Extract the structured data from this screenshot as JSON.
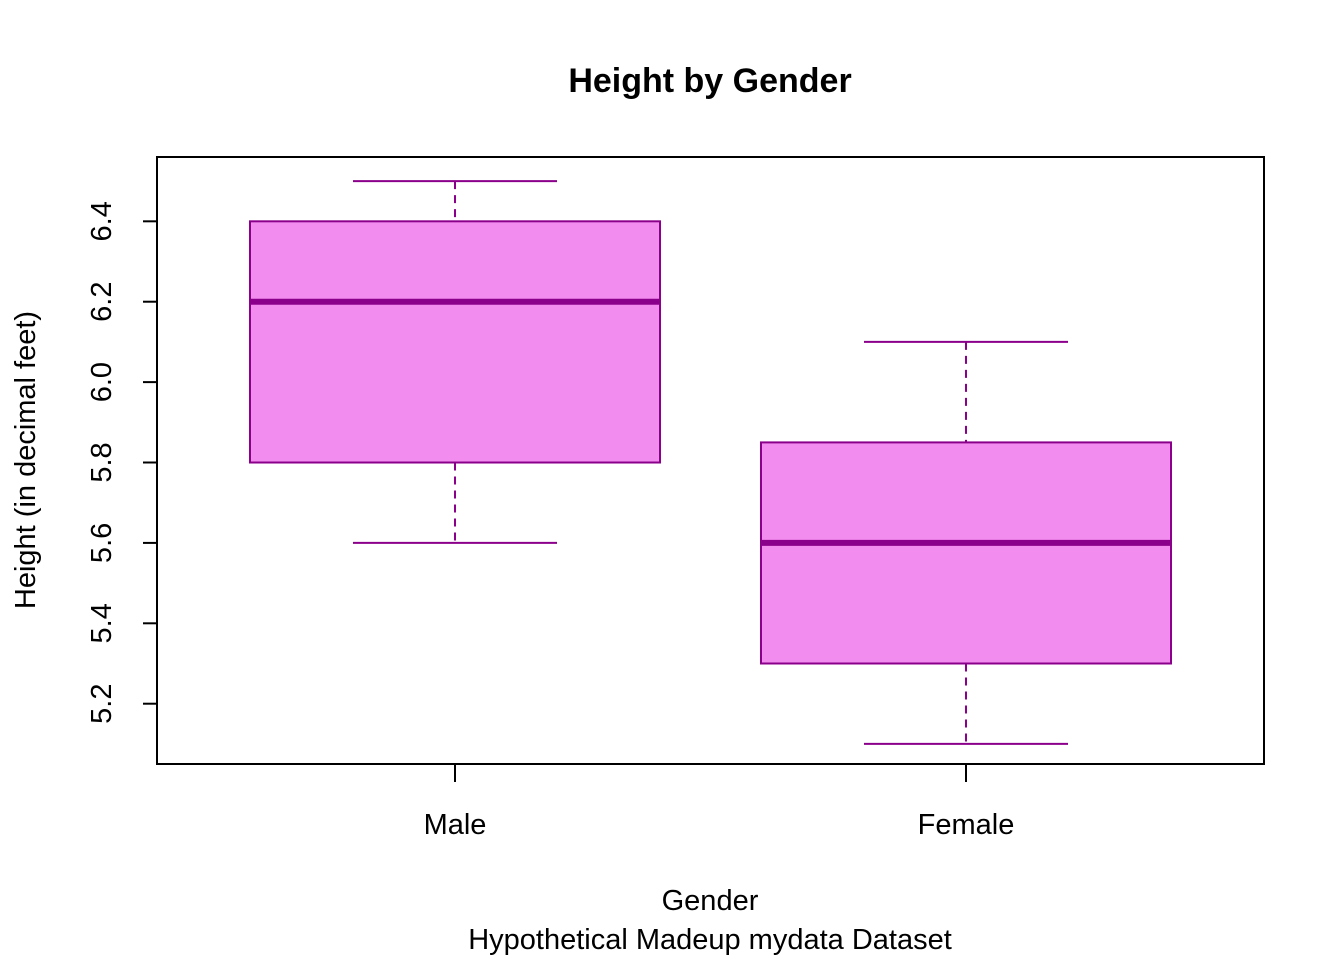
{
  "chart_data": {
    "type": "boxplot",
    "title": "Height by Gender",
    "xlabel": "Gender",
    "subtitle": "Hypothetical Madeup mydata Dataset",
    "ylabel": "Height (in decimal feet)",
    "ylim": [
      5.05,
      6.56
    ],
    "yticks": [
      "5.2",
      "5.4",
      "5.6",
      "5.8",
      "6.0",
      "6.2",
      "6.4"
    ],
    "categories": [
      "Male",
      "Female"
    ],
    "boxes": [
      {
        "category": "Male",
        "min": 5.6,
        "q1": 5.8,
        "median": 6.2,
        "q3": 6.4,
        "max": 6.5
      },
      {
        "category": "Female",
        "min": 5.1,
        "q1": 5.3,
        "median": 5.6,
        "q3": 5.85,
        "max": 6.1
      }
    ],
    "colors": {
      "box_fill": "#f38cef",
      "box_border": "#8b008b"
    }
  }
}
